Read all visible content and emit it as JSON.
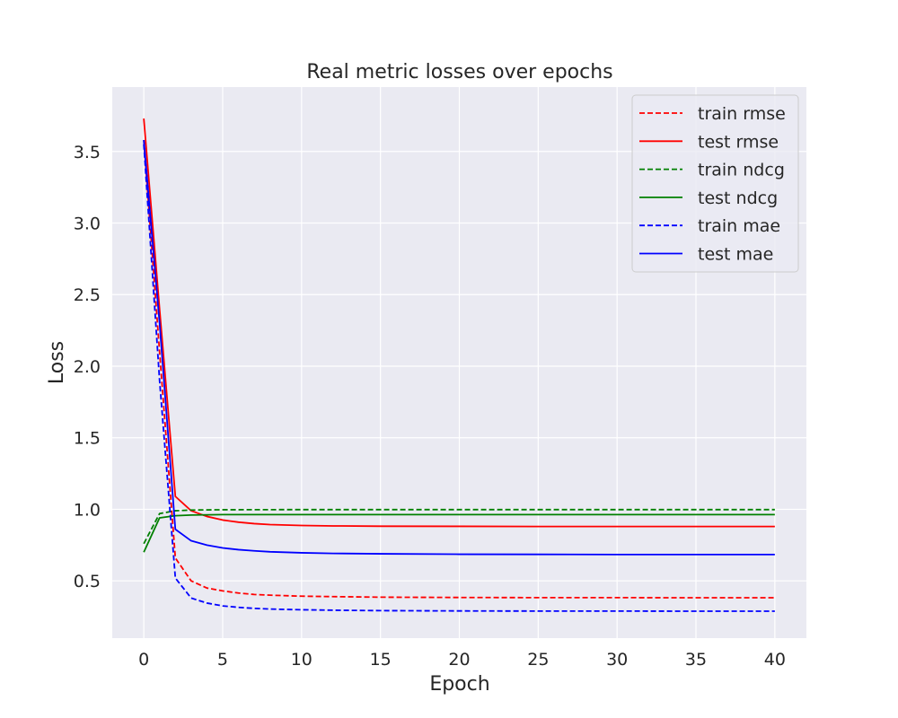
{
  "chart_data": {
    "type": "line",
    "title": "Real metric losses over epochs",
    "xlabel": "Epoch",
    "ylabel": "Loss",
    "xlim": [
      -2,
      42
    ],
    "ylim": [
      0.1,
      3.95
    ],
    "xticks": [
      0,
      5,
      10,
      15,
      20,
      25,
      30,
      35,
      40
    ],
    "yticks": [
      0.5,
      1.0,
      1.5,
      2.0,
      2.5,
      3.0,
      3.5
    ],
    "grid": true,
    "legend_position": "top-right",
    "background": "#eaeaf2",
    "series": [
      {
        "name": "train rmse",
        "color": "#ff0000",
        "dash": true,
        "points": [
          [
            0,
            3.58
          ],
          [
            1,
            2.1
          ],
          [
            2,
            0.66
          ],
          [
            3,
            0.5
          ],
          [
            4,
            0.45
          ],
          [
            5,
            0.43
          ],
          [
            6,
            0.415
          ],
          [
            7,
            0.405
          ],
          [
            8,
            0.4
          ],
          [
            10,
            0.393
          ],
          [
            12,
            0.39
          ],
          [
            15,
            0.386
          ],
          [
            20,
            0.384
          ],
          [
            25,
            0.383
          ],
          [
            30,
            0.383
          ],
          [
            35,
            0.382
          ],
          [
            40,
            0.382
          ]
        ]
      },
      {
        "name": "test rmse",
        "color": "#ff0000",
        "dash": false,
        "points": [
          [
            0,
            3.73
          ],
          [
            1,
            2.4
          ],
          [
            2,
            1.09
          ],
          [
            3,
            0.99
          ],
          [
            4,
            0.95
          ],
          [
            5,
            0.925
          ],
          [
            6,
            0.91
          ],
          [
            7,
            0.9
          ],
          [
            8,
            0.893
          ],
          [
            10,
            0.887
          ],
          [
            12,
            0.884
          ],
          [
            15,
            0.882
          ],
          [
            20,
            0.881
          ],
          [
            25,
            0.88
          ],
          [
            30,
            0.88
          ],
          [
            35,
            0.88
          ],
          [
            40,
            0.88
          ]
        ]
      },
      {
        "name": "train ndcg",
        "color": "#008000",
        "dash": true,
        "points": [
          [
            0,
            0.76
          ],
          [
            1,
            0.97
          ],
          [
            2,
            0.99
          ],
          [
            3,
            0.995
          ],
          [
            5,
            0.997
          ],
          [
            10,
            0.998
          ],
          [
            20,
            0.998
          ],
          [
            30,
            0.998
          ],
          [
            40,
            0.998
          ]
        ]
      },
      {
        "name": "test ndcg",
        "color": "#008000",
        "dash": false,
        "points": [
          [
            0,
            0.7
          ],
          [
            1,
            0.94
          ],
          [
            2,
            0.955
          ],
          [
            3,
            0.96
          ],
          [
            5,
            0.963
          ],
          [
            10,
            0.963
          ],
          [
            20,
            0.963
          ],
          [
            30,
            0.963
          ],
          [
            40,
            0.963
          ]
        ]
      },
      {
        "name": "train mae",
        "color": "#0000ff",
        "dash": true,
        "points": [
          [
            0,
            3.55
          ],
          [
            1,
            1.9
          ],
          [
            2,
            0.52
          ],
          [
            3,
            0.38
          ],
          [
            4,
            0.345
          ],
          [
            5,
            0.325
          ],
          [
            6,
            0.315
          ],
          [
            7,
            0.308
          ],
          [
            8,
            0.303
          ],
          [
            10,
            0.298
          ],
          [
            12,
            0.295
          ],
          [
            15,
            0.292
          ],
          [
            20,
            0.29
          ],
          [
            25,
            0.289
          ],
          [
            30,
            0.289
          ],
          [
            35,
            0.288
          ],
          [
            40,
            0.288
          ]
        ]
      },
      {
        "name": "test mae",
        "color": "#0000ff",
        "dash": false,
        "points": [
          [
            0,
            3.58
          ],
          [
            1,
            2.3
          ],
          [
            2,
            0.86
          ],
          [
            3,
            0.78
          ],
          [
            4,
            0.75
          ],
          [
            5,
            0.73
          ],
          [
            6,
            0.718
          ],
          [
            7,
            0.71
          ],
          [
            8,
            0.703
          ],
          [
            10,
            0.696
          ],
          [
            12,
            0.692
          ],
          [
            15,
            0.689
          ],
          [
            20,
            0.686
          ],
          [
            25,
            0.685
          ],
          [
            30,
            0.684
          ],
          [
            35,
            0.684
          ],
          [
            40,
            0.684
          ]
        ]
      }
    ]
  }
}
